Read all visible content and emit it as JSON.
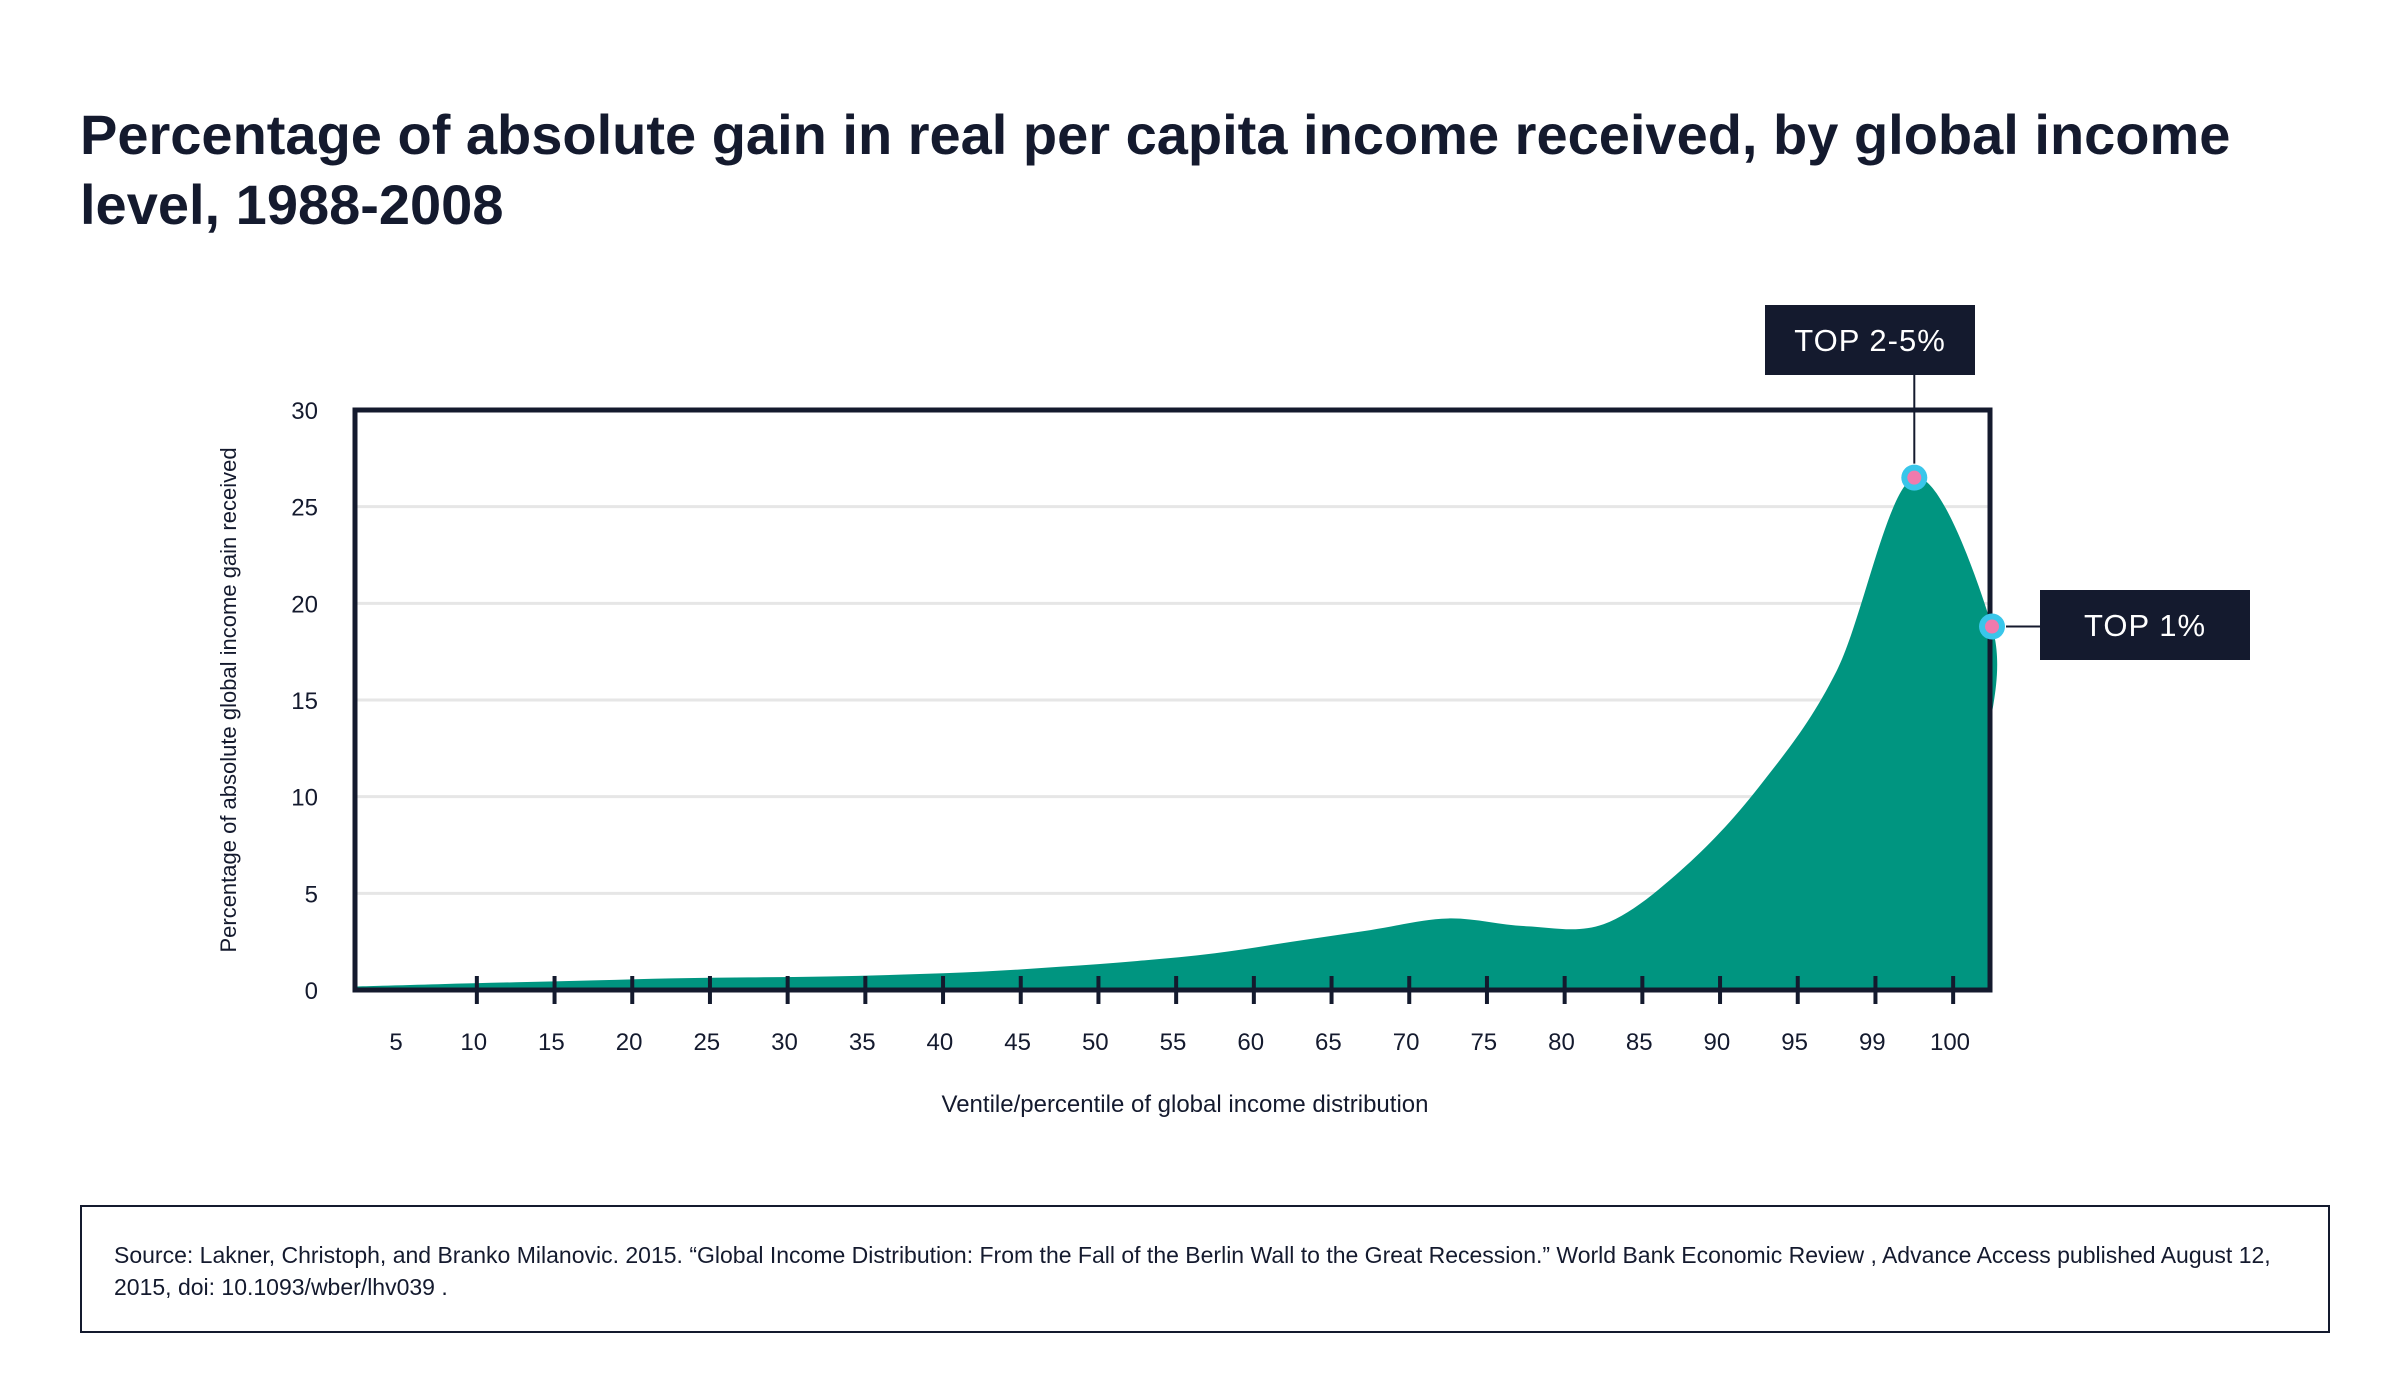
{
  "title": "Percentage of absolute gain in real per capita income received, by global income level, 1988-2008",
  "source": "Source: Lakner, Christoph, and Branko Milanovic. 2015. “Global Income Distribution: From the Fall of the Berlin Wall to the Great Recession.” World Bank Economic Review , Advance Access published August 12, 2015, doi: 10.1093/wber/lhv039 .",
  "colors": {
    "area": "#009580",
    "frame": "#141a2e",
    "grid": "#e6e6e6",
    "marker_ring": "#39c6ea",
    "marker_dot": "#f07aad",
    "callout_bg": "#141a2e",
    "callout_text": "#ffffff"
  },
  "chart_data": {
    "type": "area",
    "title": "Percentage of absolute gain in real per capita income received, by global income level, 1988-2008",
    "xlabel": "Ventile/percentile of global income distribution",
    "ylabel": "Percentage of absolute global income gain received",
    "ylim": [
      0,
      30
    ],
    "yticks": [
      0,
      5,
      10,
      15,
      20,
      25,
      30
    ],
    "categories": [
      "5",
      "10",
      "15",
      "20",
      "25",
      "30",
      "35",
      "40",
      "45",
      "50",
      "55",
      "60",
      "65",
      "70",
      "75",
      "80",
      "85",
      "90",
      "95",
      "99",
      "100"
    ],
    "values": [
      0.3,
      0.4,
      0.5,
      0.6,
      0.65,
      0.7,
      0.8,
      0.95,
      1.2,
      1.5,
      1.9,
      2.5,
      3.1,
      3.7,
      3.3,
      3.4,
      6.2,
      10.5,
      16.5,
      26.5,
      18.8
    ],
    "end_value": 13.5,
    "grid": true,
    "annotations": [
      {
        "label": "TOP 2-5%",
        "category": "99",
        "value": 26.5
      },
      {
        "label": "TOP 1%",
        "category": "100",
        "value": 18.8
      }
    ]
  }
}
